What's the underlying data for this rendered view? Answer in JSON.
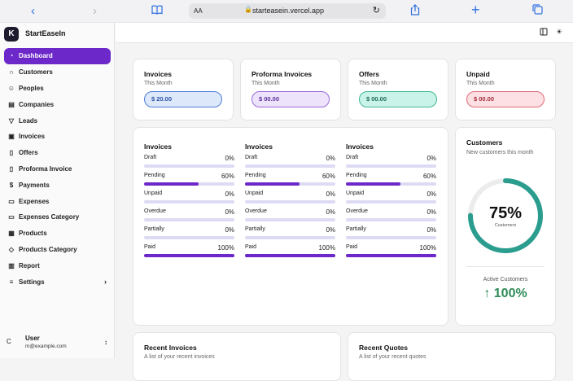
{
  "browser": {
    "address_aa": "AA",
    "url": "starteasein.vercel.app"
  },
  "brand": {
    "logo_letter": "K",
    "name": "StartEaseIn"
  },
  "sidebar": {
    "items": [
      {
        "label": "Dashboard",
        "icon": "dashboard-icon"
      },
      {
        "label": "Customers",
        "icon": "headset-icon"
      },
      {
        "label": "Peoples",
        "icon": "users-icon"
      },
      {
        "label": "Companies",
        "icon": "building-icon"
      },
      {
        "label": "Leads",
        "icon": "filter-icon"
      },
      {
        "label": "Invoices",
        "icon": "invoice-icon"
      },
      {
        "label": "Offers",
        "icon": "file-icon"
      },
      {
        "label": "Proforma Invoice",
        "icon": "file-text-icon"
      },
      {
        "label": "Payments",
        "icon": "dollar-icon"
      },
      {
        "label": "Expenses",
        "icon": "wallet-icon"
      },
      {
        "label": "Expenses Category",
        "icon": "wallet-icon"
      },
      {
        "label": "Products",
        "icon": "box-icon"
      },
      {
        "label": "Products Category",
        "icon": "tag-icon"
      },
      {
        "label": "Report",
        "icon": "chart-icon"
      },
      {
        "label": "Settings",
        "icon": "settings-icon"
      }
    ]
  },
  "user": {
    "avatar_letter": "C",
    "name": "User",
    "email": "m@example.com"
  },
  "summary_cards": [
    {
      "title": "Invoices",
      "subtitle": "This Month",
      "amount": "$ 20.00",
      "bg": "#dde8fb",
      "border": "#4f7fd8",
      "color": "#2952a3"
    },
    {
      "title": "Proforma Invoices",
      "subtitle": "This Month",
      "amount": "$ 00.00",
      "bg": "#ede4fb",
      "border": "#9a6ad8",
      "color": "#5d2e9e"
    },
    {
      "title": "Offers",
      "subtitle": "This Month",
      "amount": "$ 00.00",
      "bg": "#c9f3e8",
      "border": "#3fb894",
      "color": "#1f6b55"
    },
    {
      "title": "Unpaid",
      "subtitle": "This Month",
      "amount": "$ 00.00",
      "bg": "#fde0e3",
      "border": "#e06a78",
      "color": "#a82d3d"
    }
  ],
  "status_columns": [
    {
      "title": "Invoices",
      "rows": [
        {
          "label": "Draft",
          "percent_text": "0%",
          "value": 0
        },
        {
          "label": "Pending",
          "percent_text": "60%",
          "value": 60
        },
        {
          "label": "Unpaid",
          "percent_text": "0%",
          "value": 0
        },
        {
          "label": "Overdue",
          "percent_text": "0%",
          "value": 0
        },
        {
          "label": "Partially",
          "percent_text": "0%",
          "value": 0
        },
        {
          "label": "Paid",
          "percent_text": "100%",
          "value": 100
        }
      ]
    },
    {
      "title": "Invoices",
      "rows": [
        {
          "label": "Draft",
          "percent_text": "0%",
          "value": 0
        },
        {
          "label": "Pending",
          "percent_text": "60%",
          "value": 60
        },
        {
          "label": "Unpaid",
          "percent_text": "0%",
          "value": 0
        },
        {
          "label": "Overdue",
          "percent_text": "0%",
          "value": 0
        },
        {
          "label": "Partially",
          "percent_text": "0%",
          "value": 0
        },
        {
          "label": "Paid",
          "percent_text": "100%",
          "value": 100
        }
      ]
    },
    {
      "title": "Invoices",
      "rows": [
        {
          "label": "Draft",
          "percent_text": "0%",
          "value": 0
        },
        {
          "label": "Pending",
          "percent_text": "60%",
          "value": 60
        },
        {
          "label": "Unpaid",
          "percent_text": "0%",
          "value": 0
        },
        {
          "label": "Overdue",
          "percent_text": "0%",
          "value": 0
        },
        {
          "label": "Partially",
          "percent_text": "0%",
          "value": 0
        },
        {
          "label": "Paid",
          "percent_text": "100%",
          "value": 100
        }
      ]
    }
  ],
  "customers": {
    "title": "Customers",
    "subtitle": "New customers this month",
    "ring_value": 75,
    "ring_text": "75%",
    "ring_label": "Customers",
    "active_label": "Active Customers",
    "active_value": "100%",
    "ring_color": "#2a9d8f"
  },
  "recent": {
    "invoices_title": "Recent Invoices",
    "invoices_sub": "A list of your recent invoices",
    "quotes_title": "Recent Quotes",
    "quotes_sub": "A list of your recent quotes"
  }
}
